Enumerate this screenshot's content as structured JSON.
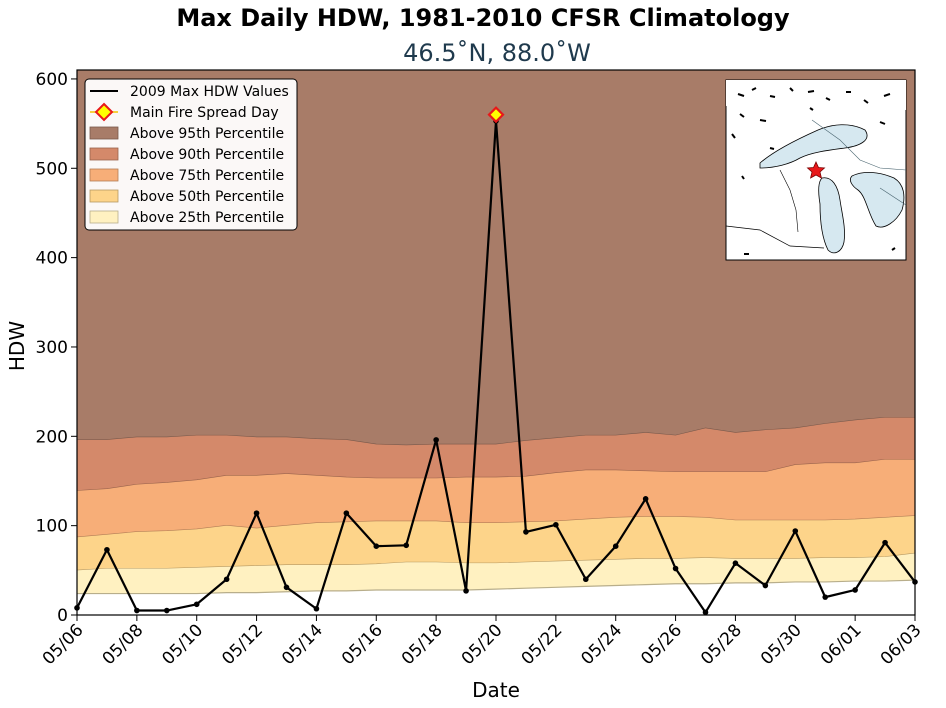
{
  "chart_data": {
    "type": "area",
    "title": "Max Daily HDW, 1981-2010 CFSR Climatology",
    "subtitle": "46.5˚N, 88.0˚W",
    "xlabel": "Date",
    "ylabel": "HDW",
    "ylim": [
      0,
      610
    ],
    "yticks": [
      0,
      100,
      200,
      300,
      400,
      500,
      600
    ],
    "x": [
      "05/06",
      "05/07",
      "05/08",
      "05/09",
      "05/10",
      "05/11",
      "05/12",
      "05/13",
      "05/14",
      "05/15",
      "05/16",
      "05/17",
      "05/18",
      "05/19",
      "05/20",
      "05/21",
      "05/22",
      "05/23",
      "05/24",
      "05/25",
      "05/26",
      "05/27",
      "05/28",
      "05/29",
      "05/30",
      "05/31",
      "06/01",
      "06/02",
      "06/03"
    ],
    "xtick_labels": [
      "05/06",
      "05/08",
      "05/10",
      "05/12",
      "05/14",
      "05/16",
      "05/18",
      "05/20",
      "05/22",
      "05/24",
      "05/26",
      "05/28",
      "05/30",
      "06/01",
      "06/03"
    ],
    "series": [
      {
        "name": "2009 Max HDW Values",
        "kind": "line",
        "color": "#000000",
        "values": [
          8,
          73,
          5,
          5,
          12,
          40,
          114,
          31,
          7,
          114,
          77,
          78,
          196,
          27,
          553,
          93,
          101,
          40,
          77,
          130,
          52,
          3,
          58,
          33,
          94,
          20,
          28,
          81,
          37
        ]
      },
      {
        "name": "Above 95th Percentile",
        "kind": "band",
        "color": "#a87c68",
        "values": [
          196,
          196,
          199,
          199,
          201,
          201,
          199,
          199,
          197,
          196,
          191,
          190,
          191,
          191,
          191,
          195,
          198,
          201,
          201,
          204,
          201,
          209,
          204,
          207,
          209,
          214,
          218,
          221,
          221
        ]
      },
      {
        "name": "Above 90th Percentile",
        "kind": "band",
        "color": "#d4896a",
        "values": [
          139,
          141,
          146,
          148,
          151,
          156,
          156,
          158,
          156,
          154,
          153,
          153,
          153,
          154,
          154,
          155,
          159,
          162,
          162,
          161,
          160,
          160,
          160,
          160,
          168,
          170,
          170,
          174,
          174
        ]
      },
      {
        "name": "Above 75th Percentile",
        "kind": "band",
        "color": "#f7ae78",
        "values": [
          87,
          90,
          93,
          94,
          96,
          100,
          97,
          100,
          103,
          104,
          105,
          105,
          105,
          103,
          103,
          104,
          105,
          107,
          109,
          110,
          110,
          109,
          106,
          106,
          106,
          106,
          107,
          109,
          111
        ]
      },
      {
        "name": "Above 50th Percentile",
        "kind": "band",
        "color": "#fdd48a",
        "values": [
          50,
          52,
          52,
          52,
          53,
          54,
          55,
          56,
          56,
          56,
          57,
          59,
          59,
          58,
          58,
          59,
          60,
          61,
          62,
          63,
          63,
          64,
          63,
          63,
          63,
          64,
          64,
          65,
          69
        ]
      },
      {
        "name": "Above 25th Percentile",
        "kind": "band",
        "color": "#fff1c1",
        "values": [
          24,
          24,
          24,
          24,
          24,
          25,
          25,
          26,
          27,
          27,
          28,
          28,
          28,
          28,
          29,
          30,
          31,
          32,
          33,
          34,
          35,
          35,
          36,
          36,
          37,
          37,
          38,
          38,
          39
        ]
      }
    ],
    "marker": {
      "name": "Main Fire Spread Day",
      "x": "05/20",
      "y": 560,
      "fill": "#ffff00",
      "edge": "#e8181a"
    },
    "legend": "top-left",
    "inset_map": {
      "marker": "star",
      "marker_color": "#e8181a",
      "water_color": "#d6e8f0"
    }
  }
}
